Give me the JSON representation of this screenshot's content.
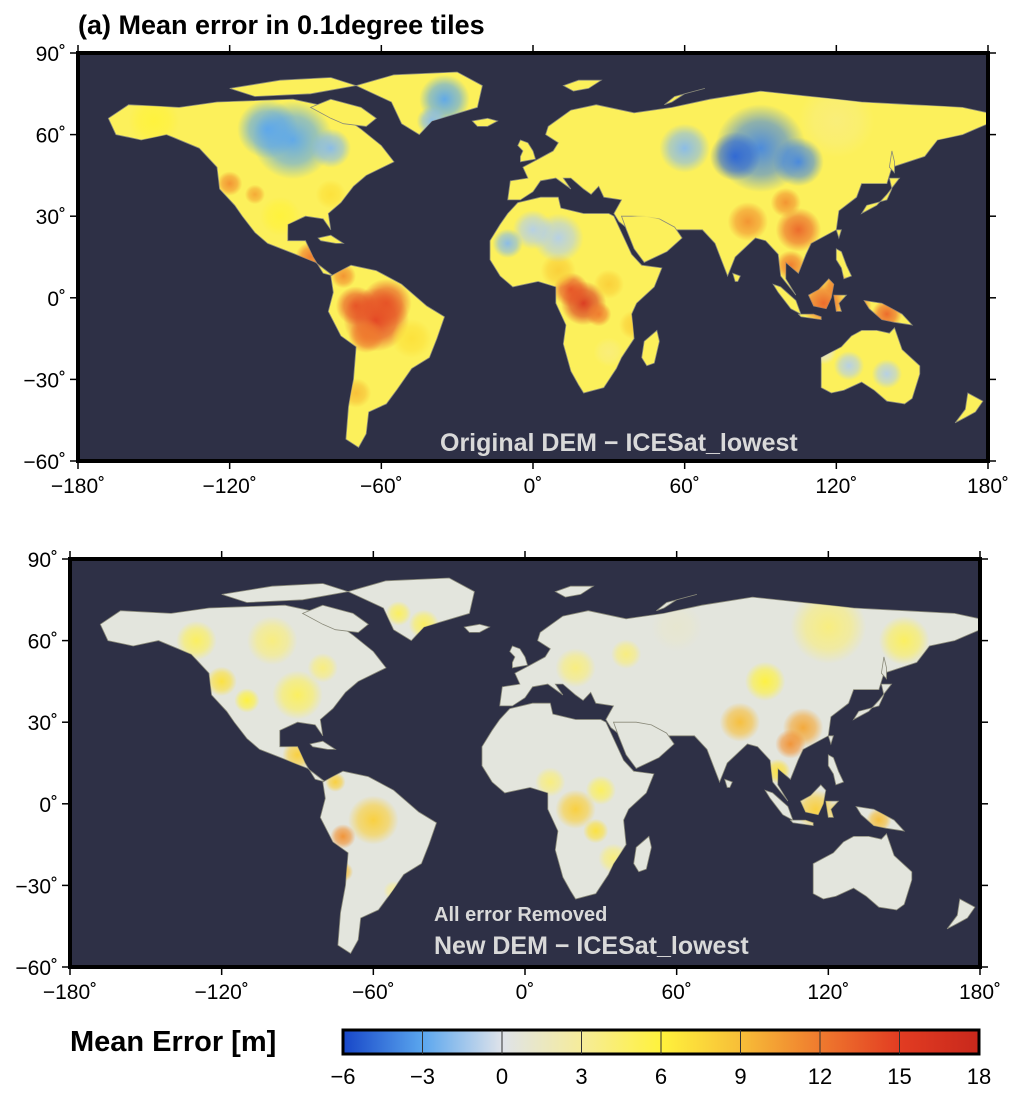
{
  "title": "(a) Mean error in 0.1degree tiles",
  "colors": {
    "ocean": "#2e3046",
    "land_neutral": "#dcdfe6",
    "frame": "#000000"
  },
  "panels": [
    {
      "id": "original",
      "labels": [
        "Original DEM − ICESat_lowest"
      ],
      "lat_ticks": [
        "90˚",
        "60˚",
        "30˚",
        "0˚",
        "−30˚",
        "−60˚"
      ],
      "lon_ticks": [
        "−180˚",
        "−120˚",
        "−60˚",
        "0˚",
        "60˚",
        "120˚",
        "180˚"
      ]
    },
    {
      "id": "new",
      "labels": [
        "All error Removed",
        "New DEM − ICESat_lowest"
      ],
      "lat_ticks": [
        "90˚",
        "60˚",
        "30˚",
        "0˚",
        "−30˚",
        "−60˚"
      ],
      "lon_ticks": [
        "−180˚",
        "−120˚",
        "−60˚",
        "0˚",
        "60˚",
        "120˚",
        "180˚"
      ]
    }
  ],
  "colorbar": {
    "label": "Mean Error [m]",
    "min": -6,
    "max": 18,
    "ticks": [
      "−6",
      "−3",
      "0",
      "3",
      "6",
      "9",
      "12",
      "15",
      "18"
    ],
    "stops": [
      "#1746c8",
      "#5aa6ee",
      "#dfe3ea",
      "#f6ec9a",
      "#fff23c",
      "#f7be38",
      "#ef7a2e",
      "#e23c22",
      "#c8281c"
    ]
  }
}
